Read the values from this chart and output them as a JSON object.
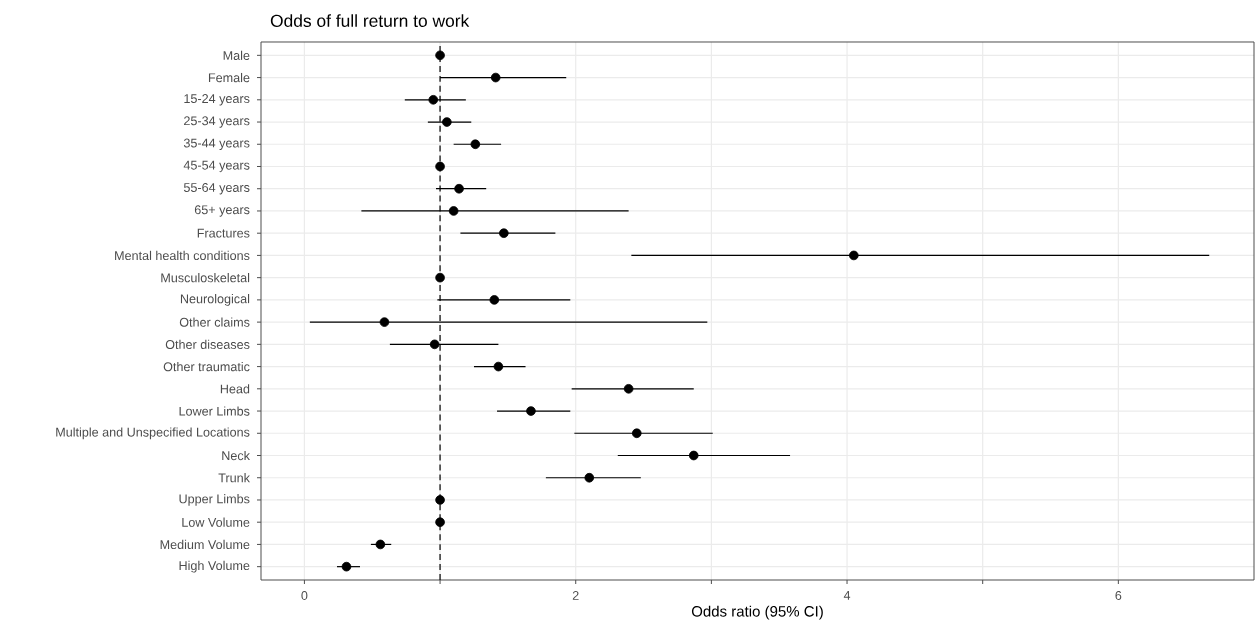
{
  "chart_data": {
    "type": "scatter",
    "orientation": "horizontal",
    "title": "Odds of full return to work",
    "xlabel": "Odds ratio (95% CI)",
    "categories": [
      "Male",
      "Female",
      "15-24 years",
      "25-34 years",
      "35-44 years",
      "45-54 years",
      "55-64 years",
      "65+ years",
      "Fractures",
      "Mental health conditions",
      "Musculoskeletal",
      "Neurological",
      "Other claims",
      "Other diseases",
      "Other traumatic",
      "Head",
      "Lower Limbs",
      "Multiple and Unspecified Locations",
      "Neck",
      "Trunk",
      "Upper Limbs",
      "Low Volume",
      "Medium Volume",
      "High Volume"
    ],
    "values": [
      1.0,
      1.41,
      0.95,
      1.05,
      1.26,
      1.0,
      1.14,
      1.1,
      1.47,
      4.05,
      1.0,
      1.4,
      0.59,
      0.96,
      1.43,
      2.39,
      1.67,
      2.45,
      2.87,
      2.1,
      1.0,
      1.0,
      0.56,
      0.31
    ],
    "errors": [
      null,
      [
        1.0,
        1.93
      ],
      [
        0.74,
        1.19
      ],
      [
        0.91,
        1.23
      ],
      [
        1.1,
        1.45
      ],
      null,
      [
        0.97,
        1.34
      ],
      [
        0.42,
        2.39
      ],
      [
        1.15,
        1.85
      ],
      [
        2.41,
        6.67
      ],
      null,
      [
        0.98,
        1.96
      ],
      [
        0.04,
        2.97
      ],
      [
        0.63,
        1.43
      ],
      [
        1.25,
        1.63
      ],
      [
        1.97,
        2.87
      ],
      [
        1.42,
        1.96
      ],
      [
        1.99,
        3.01
      ],
      [
        2.31,
        3.58
      ],
      [
        1.78,
        2.48
      ],
      null,
      null,
      [
        0.49,
        0.64
      ],
      [
        0.24,
        0.41
      ]
    ],
    "color": "#000000",
    "marker": "circle",
    "grid": true,
    "xlim": [
      -0.32,
      7.0
    ],
    "xticks": [
      0,
      {
        "value": 1,
        "label": null
      },
      2,
      {
        "value": 3,
        "label": null
      },
      4,
      {
        "value": 5,
        "label": null
      },
      6
    ],
    "ref_lines": [
      {
        "axis": "x",
        "value": 1,
        "line_style": "dashed"
      }
    ]
  }
}
